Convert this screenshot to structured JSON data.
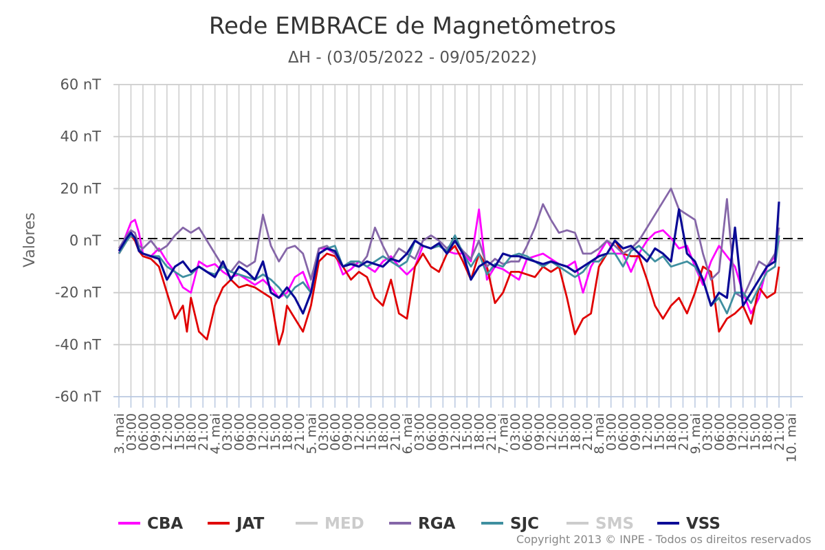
{
  "chart_data": {
    "type": "line",
    "title": "Rede EMBRACE de Magnetômetros",
    "subtitle": "ΔH - (03/05/2022 - 09/05/2022)",
    "ylabel": "Valores",
    "xlabel": "",
    "ylim": [
      -60,
      60
    ],
    "yticks": [
      60,
      40,
      20,
      0,
      -20,
      -40,
      -60
    ],
    "ytick_suffix": " nT",
    "xlim_hours": [
      0,
      171
    ],
    "x_tick_labels": [
      "3. mai",
      "03:00",
      "06:00",
      "09:00",
      "12:00",
      "15:00",
      "18:00",
      "21:00",
      "4. mai",
      "03:00",
      "06:00",
      "09:00",
      "12:00",
      "15:00",
      "18:00",
      "21:00",
      "5. mai",
      "03:00",
      "06:00",
      "09:00",
      "12:00",
      "15:00",
      "18:00",
      "21:00",
      "6. mai",
      "03:00",
      "06:00",
      "09:00",
      "12:00",
      "15:00",
      "18:00",
      "21:00",
      "7. mai",
      "03:00",
      "06:00",
      "09:00",
      "12:00",
      "15:00",
      "18:00",
      "21:00",
      "8. mai",
      "03:00",
      "06:00",
      "09:00",
      "12:00",
      "15:00",
      "18:00",
      "21:00",
      "9. mai",
      "03:00",
      "06:00",
      "09:00",
      "12:00",
      "15:00",
      "18:00",
      "21:00",
      "10. mai"
    ],
    "reference_line": 0,
    "grid": true,
    "legend_position": "bottom",
    "x_unit": "hours since 03/05/2022 00:00",
    "series": [
      {
        "name": "CBA",
        "color": "#ff00ff",
        "visible": true,
        "x": [
          0,
          2,
          3,
          4,
          5,
          6,
          8,
          10,
          12,
          14,
          16,
          18,
          20,
          22,
          24,
          26,
          28,
          30,
          32,
          34,
          36,
          38,
          40,
          42,
          44,
          46,
          48,
          50,
          52,
          54,
          56,
          58,
          60,
          62,
          64,
          66,
          68,
          70,
          72,
          74,
          76,
          78,
          80,
          82,
          84,
          86,
          88,
          90,
          92,
          94,
          96,
          98,
          100,
          102,
          104,
          106,
          108,
          110,
          112,
          114,
          116,
          118,
          120,
          122,
          124,
          126,
          128,
          130,
          132,
          134,
          136,
          138,
          140,
          142,
          144,
          146,
          148,
          150,
          152,
          154,
          156,
          158,
          160,
          162,
          164,
          165
        ],
        "y": [
          -5,
          3,
          7,
          8,
          3,
          -5,
          -6,
          -3,
          -8,
          -12,
          -18,
          -20,
          -8,
          -10,
          -9,
          -12,
          -14,
          -13,
          -15,
          -17,
          -15,
          -18,
          -22,
          -20,
          -14,
          -12,
          -20,
          -3,
          -3,
          -5,
          -13,
          -11,
          -8,
          -10,
          -12,
          -8,
          -6,
          -10,
          -13,
          -10,
          -2,
          -3,
          -2,
          -4,
          -5,
          -5,
          -8,
          12,
          -15,
          -10,
          -11,
          -13,
          -15,
          -7,
          -6,
          -5,
          -7,
          -9,
          -10,
          -8,
          -20,
          -10,
          -5,
          0,
          -5,
          -5,
          -12,
          -5,
          0,
          3,
          4,
          1,
          -3,
          -2,
          -10,
          -17,
          -8,
          -2,
          -6,
          -10,
          -20,
          -28,
          -22,
          -10,
          -6,
          0
        ]
      },
      {
        "name": "JAT",
        "color": "#e00000",
        "visible": true,
        "x": [
          0,
          2,
          3,
          4,
          5,
          6,
          8,
          10,
          12,
          14,
          16,
          17,
          18,
          20,
          22,
          24,
          26,
          28,
          30,
          32,
          34,
          36,
          38,
          40,
          41,
          42,
          44,
          46,
          48,
          50,
          52,
          54,
          56,
          58,
          60,
          62,
          64,
          66,
          68,
          70,
          72,
          74,
          76,
          78,
          80,
          82,
          84,
          86,
          88,
          90,
          92,
          94,
          96,
          98,
          100,
          102,
          104,
          106,
          108,
          110,
          112,
          114,
          116,
          118,
          120,
          122,
          124,
          126,
          128,
          130,
          132,
          134,
          136,
          138,
          140,
          142,
          144,
          146,
          148,
          150,
          152,
          154,
          156,
          158,
          160,
          162,
          164,
          165
        ],
        "y": [
          -5,
          0,
          2,
          0,
          -4,
          -6,
          -7,
          -10,
          -20,
          -30,
          -25,
          -35,
          -22,
          -35,
          -38,
          -25,
          -18,
          -15,
          -18,
          -17,
          -18,
          -20,
          -22,
          -40,
          -35,
          -25,
          -30,
          -35,
          -25,
          -8,
          -5,
          -6,
          -10,
          -15,
          -12,
          -14,
          -22,
          -25,
          -15,
          -28,
          -30,
          -10,
          -5,
          -10,
          -12,
          -5,
          -2,
          -8,
          -15,
          -5,
          -10,
          -24,
          -20,
          -12,
          -12,
          -13,
          -14,
          -10,
          -12,
          -10,
          -22,
          -36,
          -30,
          -28,
          -10,
          -5,
          0,
          -5,
          -6,
          -6,
          -15,
          -25,
          -30,
          -25,
          -22,
          -28,
          -20,
          -10,
          -12,
          -35,
          -30,
          -28,
          -25,
          -32,
          -18,
          -22,
          -20,
          -10
        ]
      },
      {
        "name": "MED",
        "color": "#cccccc",
        "visible": false,
        "x": [],
        "y": []
      },
      {
        "name": "RGA",
        "color": "#8566a8",
        "visible": true,
        "x": [
          0,
          2,
          3,
          4,
          5,
          6,
          8,
          10,
          12,
          14,
          16,
          18,
          20,
          22,
          24,
          26,
          28,
          30,
          32,
          34,
          36,
          38,
          40,
          42,
          44,
          46,
          48,
          50,
          52,
          54,
          56,
          58,
          60,
          62,
          64,
          66,
          68,
          70,
          72,
          74,
          76,
          78,
          80,
          82,
          84,
          86,
          88,
          90,
          92,
          94,
          96,
          98,
          100,
          102,
          104,
          106,
          108,
          110,
          112,
          114,
          116,
          118,
          120,
          122,
          124,
          126,
          128,
          130,
          132,
          134,
          136,
          138,
          140,
          142,
          144,
          146,
          148,
          150,
          152,
          154,
          156,
          158,
          160,
          162,
          164,
          165
        ],
        "y": [
          -3,
          2,
          4,
          3,
          -2,
          -3,
          0,
          -4,
          -2,
          2,
          5,
          3,
          5,
          0,
          -5,
          -10,
          -12,
          -8,
          -10,
          -8,
          10,
          -2,
          -8,
          -3,
          -2,
          -5,
          -15,
          -3,
          -2,
          -5,
          -10,
          -8,
          -10,
          -6,
          5,
          -2,
          -8,
          -3,
          -5,
          -7,
          0,
          2,
          0,
          -3,
          0,
          -4,
          -7,
          0,
          -10,
          -7,
          -9,
          -8,
          -8,
          -2,
          5,
          14,
          8,
          3,
          4,
          3,
          -5,
          -5,
          -3,
          0,
          -2,
          -5,
          -3,
          0,
          5,
          10,
          15,
          20,
          12,
          10,
          8,
          -5,
          -15,
          -12,
          16,
          -20,
          -22,
          -15,
          -8,
          -10,
          -5,
          5
        ]
      },
      {
        "name": "SJC",
        "color": "#3f8fa0",
        "visible": true,
        "x": [
          0,
          2,
          3,
          4,
          5,
          6,
          8,
          10,
          12,
          14,
          16,
          18,
          20,
          22,
          24,
          26,
          28,
          30,
          32,
          34,
          36,
          38,
          40,
          42,
          44,
          46,
          48,
          50,
          52,
          54,
          56,
          58,
          60,
          62,
          64,
          66,
          68,
          70,
          72,
          74,
          76,
          78,
          80,
          82,
          84,
          86,
          88,
          90,
          92,
          94,
          96,
          98,
          100,
          102,
          104,
          106,
          108,
          110,
          112,
          114,
          116,
          118,
          120,
          122,
          124,
          126,
          128,
          130,
          132,
          134,
          136,
          138,
          140,
          142,
          144,
          146,
          148,
          150,
          152,
          154,
          156,
          158,
          160,
          162,
          164,
          165
        ],
        "y": [
          -5,
          0,
          2,
          1,
          -3,
          -5,
          -6,
          -6,
          -10,
          -12,
          -14,
          -13,
          -10,
          -12,
          -13,
          -10,
          -12,
          -13,
          -14,
          -15,
          -13,
          -15,
          -18,
          -22,
          -18,
          -16,
          -20,
          -5,
          -3,
          -2,
          -10,
          -8,
          -8,
          -10,
          -8,
          -6,
          -8,
          -10,
          -8,
          0,
          -2,
          -3,
          -2,
          -4,
          2,
          -5,
          -10,
          -5,
          -13,
          -9,
          -10,
          -6,
          -5,
          -6,
          -8,
          -10,
          -8,
          -10,
          -12,
          -14,
          -12,
          -8,
          -8,
          -5,
          -5,
          -10,
          -4,
          -2,
          -5,
          -8,
          -6,
          -10,
          -9,
          -8,
          -10,
          -15,
          -25,
          -22,
          -28,
          -20,
          -20,
          -24,
          -18,
          -12,
          -10,
          2
        ]
      },
      {
        "name": "SMS",
        "color": "#cccccc",
        "visible": false,
        "x": [],
        "y": []
      },
      {
        "name": "VSS",
        "color": "#0a0a96",
        "visible": true,
        "x": [
          0,
          2,
          3,
          4,
          5,
          6,
          8,
          10,
          12,
          14,
          16,
          18,
          20,
          22,
          24,
          26,
          28,
          30,
          32,
          34,
          36,
          38,
          40,
          42,
          44,
          46,
          48,
          50,
          52,
          54,
          56,
          58,
          60,
          62,
          64,
          66,
          68,
          70,
          72,
          74,
          76,
          78,
          80,
          82,
          84,
          86,
          88,
          90,
          92,
          94,
          96,
          98,
          100,
          102,
          104,
          106,
          108,
          110,
          112,
          114,
          116,
          118,
          120,
          122,
          124,
          126,
          128,
          130,
          132,
          134,
          136,
          138,
          140,
          142,
          144,
          146,
          148,
          150,
          152,
          154,
          156,
          158,
          160,
          162,
          164,
          165
        ],
        "y": [
          -4,
          1,
          3,
          1,
          -4,
          -5,
          -6,
          -7,
          -15,
          -10,
          -8,
          -12,
          -10,
          -12,
          -14,
          -8,
          -15,
          -10,
          -12,
          -15,
          -8,
          -20,
          -22,
          -18,
          -22,
          -28,
          -20,
          -5,
          -3,
          -4,
          -10,
          -9,
          -10,
          -8,
          -9,
          -10,
          -7,
          -8,
          -5,
          0,
          -2,
          -3,
          -1,
          -5,
          0,
          -5,
          -15,
          -10,
          -8,
          -10,
          -5,
          -6,
          -6,
          -7,
          -8,
          -9,
          -8,
          -9,
          -10,
          -12,
          -10,
          -8,
          -6,
          -5,
          0,
          -3,
          -2,
          -5,
          -8,
          -3,
          -5,
          -8,
          12,
          -5,
          -8,
          -15,
          -25,
          -20,
          -22,
          5,
          -25,
          -20,
          -15,
          -10,
          -8,
          15
        ]
      }
    ]
  },
  "credits": "Copyright 2013 © INPE - Todos os direitos reservados"
}
